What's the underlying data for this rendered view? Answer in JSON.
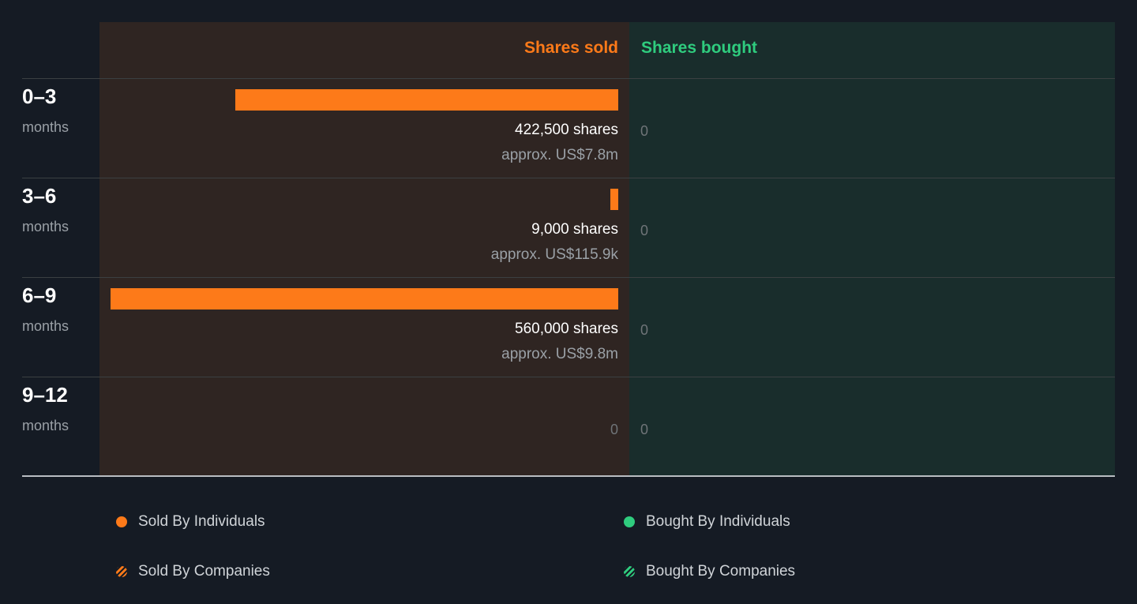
{
  "chart_data": {
    "type": "bar",
    "headers": {
      "sold": "Shares sold",
      "bought": "Shares bought"
    },
    "periods": [
      {
        "range": "0–3",
        "unit": "months",
        "sold_shares": 422500,
        "sold_label": "422,500 shares",
        "sold_value": "approx. US$7.8m",
        "sold_zero": "",
        "bought_label": "0"
      },
      {
        "range": "3–6",
        "unit": "months",
        "sold_shares": 9000,
        "sold_label": "9,000 shares",
        "sold_value": "approx. US$115.9k",
        "sold_zero": "",
        "bought_label": "0"
      },
      {
        "range": "6–9",
        "unit": "months",
        "sold_shares": 560000,
        "sold_label": "560,000 shares",
        "sold_value": "approx. US$9.8m",
        "sold_zero": "",
        "bought_label": "0"
      },
      {
        "range": "9–12",
        "unit": "months",
        "sold_shares": 0,
        "sold_label": "",
        "sold_value": "",
        "sold_zero": "0",
        "bought_label": "0"
      }
    ],
    "xlim": [
      0,
      560000
    ],
    "legend": [
      {
        "label": "Sold By Individuals",
        "marker": "dot",
        "color": "#fd7a19"
      },
      {
        "label": "Bought By Individuals",
        "marker": "dot",
        "color": "#2fcc7e"
      },
      {
        "label": "Sold By Companies",
        "marker": "hatched-dot",
        "color": "#fd7a19"
      },
      {
        "label": "Bought By Companies",
        "marker": "hatched-dot",
        "color": "#2fcc7e"
      }
    ]
  },
  "colors": {
    "sold": "#fd7a19",
    "bought": "#2fcc7e",
    "sold_bg": "#2f2522",
    "bought_bg": "#192d2c",
    "page_bg": "#151b24"
  }
}
